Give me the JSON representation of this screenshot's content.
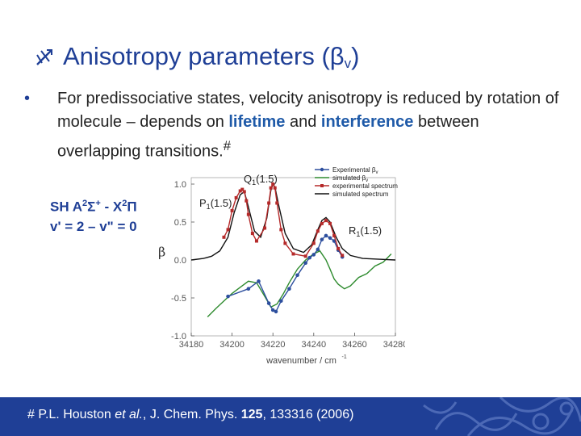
{
  "slide": {
    "title_main": "Anisotropy parameters (β",
    "title_sub": "v",
    "title_end": ")",
    "bullet_before": "For predissociative states, velocity anisotropy is reduced by rotation of molecule – depends on ",
    "bullet_lifetime": "lifetime",
    "bullet_and": " and ",
    "bullet_interference": "interference",
    "bullet_after": " between overlapping transitions.",
    "bullet_mark": "#",
    "state_line1_a": "SH A",
    "state_sup1": "2",
    "state_line1_b": "Σ",
    "state_sup2": "+",
    "state_line1_c": " - X",
    "state_sup3": "2",
    "state_line1_d": "Π",
    "state_line2": "v' = 2 – v\" = 0",
    "footer_mark": "#",
    "footer_authors": " P.L. Houston ",
    "footer_etal": "et al.",
    "footer_journal": ", J. Chem. Phys. ",
    "footer_volume": "125",
    "footer_pages": ", 133316 (2006)"
  },
  "colors": {
    "title": "#1f3f96",
    "highlight": "#1f5aa8",
    "footer_bg": "#1f3f96",
    "experimental_beta": "#2d4f9e",
    "simulated_beta": "#2e8b2e",
    "experimental_spectrum": "#b52a2a",
    "simulated_spectrum": "#111111"
  },
  "chart_data": {
    "type": "line",
    "xlabel": "wavenumber / cm",
    "xlabel_sup": "-1",
    "ylabel": "β",
    "xlim": [
      34180,
      34280
    ],
    "ylim": [
      -1.0,
      1.0
    ],
    "x_ticks": [
      34180,
      34200,
      34220,
      34240,
      34260,
      34280
    ],
    "y_ticks": [
      1.0,
      0.5,
      0.0,
      -0.5,
      -1.0
    ],
    "y_tick_labels": [
      "1.0",
      "0.5",
      "0.0",
      "-0.5",
      "-1.0"
    ],
    "annotations": [
      {
        "label": "Q",
        "sub": "1",
        "rest": "(1.5)"
      },
      {
        "label": "P",
        "sub": "1",
        "rest": "(1.5)"
      },
      {
        "label": "R",
        "sub": "1",
        "rest": "(1.5)"
      }
    ],
    "legend_position": "top-right",
    "series": [
      {
        "name_main": "Experimental β",
        "name_sub": "v",
        "kind": "line+markers",
        "color": "#2d4f9e",
        "x": [
          34198,
          34208,
          34213,
          34218,
          34220,
          34221.5,
          34224,
          34228,
          34232,
          34236,
          34238,
          34240,
          34242,
          34244,
          34246,
          34248,
          34250,
          34252,
          34254
        ],
        "y": [
          -0.48,
          -0.38,
          -0.28,
          -0.57,
          -0.66,
          -0.68,
          -0.54,
          -0.38,
          -0.2,
          -0.04,
          0.03,
          0.07,
          0.14,
          0.27,
          0.32,
          0.29,
          0.25,
          0.13,
          0.04
        ]
      },
      {
        "name_main": "simulated β",
        "name_sub": "v",
        "kind": "line",
        "color": "#2e8b2e",
        "x": [
          34188,
          34192,
          34196,
          34200,
          34204,
          34208,
          34212,
          34216,
          34219,
          34222,
          34225,
          34228,
          34232,
          34236,
          34240,
          34243,
          34246,
          34248,
          34250,
          34252,
          34255,
          34258,
          34262,
          34266,
          34270,
          34274,
          34278
        ],
        "y": [
          -0.75,
          -0.64,
          -0.54,
          -0.44,
          -0.36,
          -0.28,
          -0.3,
          -0.48,
          -0.62,
          -0.58,
          -0.45,
          -0.3,
          -0.12,
          0.0,
          0.08,
          0.12,
          0.0,
          -0.12,
          -0.25,
          -0.32,
          -0.38,
          -0.34,
          -0.23,
          -0.18,
          -0.08,
          -0.03,
          0.08
        ]
      },
      {
        "name_main": "experimental spectrum",
        "name_sub": "",
        "kind": "line+markers",
        "color": "#b52a2a",
        "x": [
          34196,
          34198,
          34200,
          34202,
          34204,
          34205,
          34206,
          34207,
          34208,
          34210,
          34212,
          34216,
          34218,
          34219,
          34220,
          34221,
          34222,
          34224,
          34226,
          34230,
          34236,
          34240,
          34242,
          34244,
          34246,
          34248,
          34250,
          34252,
          34254
        ],
        "y": [
          0.3,
          0.4,
          0.65,
          0.82,
          0.91,
          0.93,
          0.9,
          0.78,
          0.6,
          0.35,
          0.25,
          0.42,
          0.75,
          0.95,
          1.0,
          0.95,
          0.75,
          0.4,
          0.22,
          0.08,
          0.05,
          0.22,
          0.38,
          0.48,
          0.52,
          0.48,
          0.32,
          0.15,
          0.06
        ]
      },
      {
        "name_main": "simulated spectrum",
        "name_sub": "",
        "kind": "line",
        "color": "#111111",
        "x": [
          34180,
          34186,
          34190,
          34194,
          34198,
          34201,
          34204,
          34206,
          34208,
          34211,
          34214,
          34217,
          34219,
          34220,
          34221,
          34223,
          34226,
          34230,
          34235,
          34239,
          34242,
          34244,
          34246,
          34248,
          34251,
          34254,
          34258,
          34264,
          34272,
          34280
        ],
        "y": [
          0.0,
          0.02,
          0.05,
          0.12,
          0.3,
          0.62,
          0.86,
          0.9,
          0.7,
          0.38,
          0.3,
          0.55,
          0.92,
          1.0,
          0.96,
          0.7,
          0.35,
          0.15,
          0.1,
          0.2,
          0.4,
          0.52,
          0.56,
          0.5,
          0.3,
          0.15,
          0.06,
          0.02,
          0.01,
          0.0
        ]
      }
    ]
  }
}
